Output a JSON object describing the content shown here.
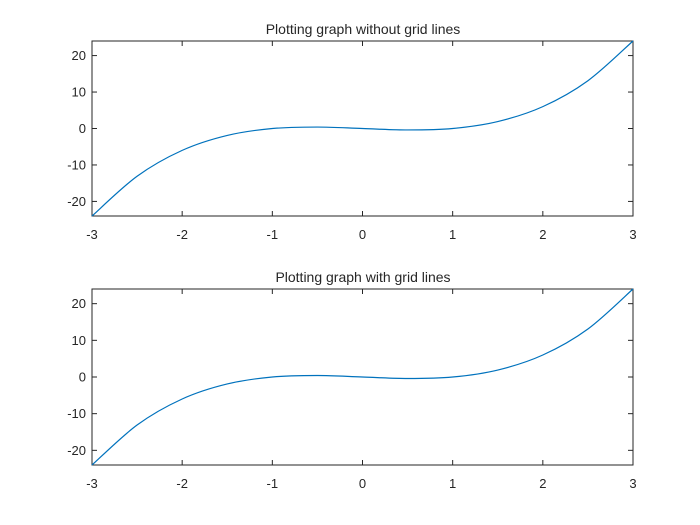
{
  "chart_data": [
    {
      "type": "line",
      "title": "Plotting graph without grid lines",
      "xlabel": "",
      "ylabel": "",
      "xlim": [
        -3,
        3
      ],
      "ylim": [
        -24,
        24
      ],
      "xticks": [
        -3,
        -2,
        -1,
        0,
        1,
        2,
        3
      ],
      "yticks": [
        -20,
        -10,
        0,
        10,
        20
      ],
      "xtick_labels": [
        "-3",
        "-2",
        "-1",
        "0",
        "1",
        "2",
        "3"
      ],
      "ytick_labels": [
        "-20",
        "-10",
        "0",
        "10",
        "20"
      ],
      "grid": false,
      "series": [
        {
          "color": "#0072bd",
          "x": [
            -3,
            -2.5,
            -2,
            -1.5,
            -1,
            -0.5,
            0,
            0.5,
            1,
            1.5,
            2,
            2.5,
            3
          ],
          "y": [
            -24,
            -13.1,
            -6,
            -1.9,
            0,
            0.4,
            0,
            -0.4,
            0,
            1.9,
            6,
            13.1,
            24
          ]
        }
      ]
    },
    {
      "type": "line",
      "title": "Plotting graph with grid lines",
      "xlabel": "",
      "ylabel": "",
      "xlim": [
        -3,
        3
      ],
      "ylim": [
        -24,
        24
      ],
      "xticks": [
        -3,
        -2,
        -1,
        0,
        1,
        2,
        3
      ],
      "yticks": [
        -20,
        -10,
        0,
        10,
        20
      ],
      "xtick_labels": [
        "-3",
        "-2",
        "-1",
        "0",
        "1",
        "2",
        "3"
      ],
      "ytick_labels": [
        "-20",
        "-10",
        "0",
        "10",
        "20"
      ],
      "grid": true,
      "series": [
        {
          "color": "#0072bd",
          "x": [
            -3,
            -2.5,
            -2,
            -1.5,
            -1,
            -0.5,
            0,
            0.5,
            1,
            1.5,
            2,
            2.5,
            3
          ],
          "y": [
            -24,
            -13.1,
            -6,
            -1.9,
            0,
            0.4,
            0,
            -0.4,
            0,
            1.9,
            6,
            13.1,
            24
          ]
        }
      ]
    }
  ]
}
